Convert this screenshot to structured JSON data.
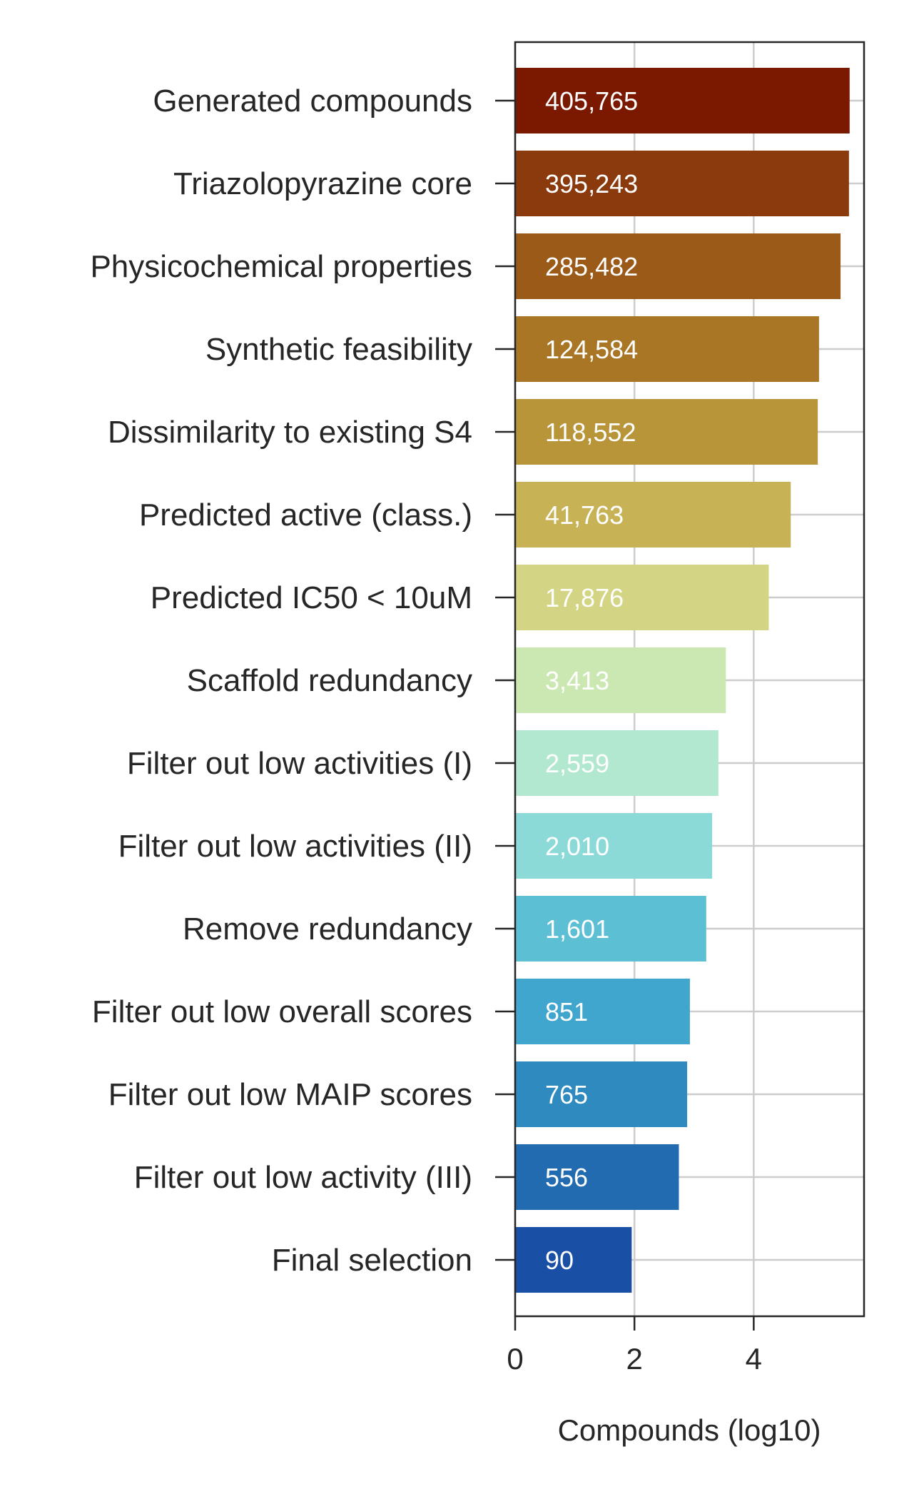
{
  "chart_data": {
    "type": "bar",
    "orientation": "horizontal",
    "xlabel": "Compounds (log10)",
    "xticks": [
      0,
      2,
      4
    ],
    "xlim": [
      0,
      5.85
    ],
    "grid": true,
    "categories": [
      "Generated compounds",
      "Triazolopyrazine core",
      "Physicochemical properties",
      "Synthetic feasibility",
      "Dissimilarity to existing S4",
      "Predicted active (class.)",
      "Predicted IC50 < 10uM",
      "Scaffold redundancy",
      "Filter out low activities (I)",
      "Filter out low activities (II)",
      "Remove redundancy",
      "Filter out low overall scores",
      "Filter out low MAIP scores",
      "Filter out low activity (III)",
      "Final selection"
    ],
    "values": [
      5.608,
      5.597,
      5.456,
      5.095,
      5.074,
      4.621,
      4.252,
      3.533,
      3.408,
      3.303,
      3.204,
      2.93,
      2.884,
      2.745,
      1.954
    ],
    "value_labels": [
      "405,765",
      "395,243",
      "285,482",
      "124,584",
      "118,552",
      "41,763",
      "17,876",
      "3,413",
      "2,559",
      "2,010",
      "1,601",
      "851",
      "765",
      "556",
      "90"
    ],
    "colors": [
      "#7b1800",
      "#8a3a0d",
      "#9b5a17",
      "#a97626",
      "#b9953a",
      "#c7b356",
      "#d3d584",
      "#cce8b2",
      "#b2e8cf",
      "#8bdad8",
      "#5dbfd4",
      "#40a6cd",
      "#2e8abf",
      "#226bb0",
      "#1a4fa6"
    ]
  }
}
